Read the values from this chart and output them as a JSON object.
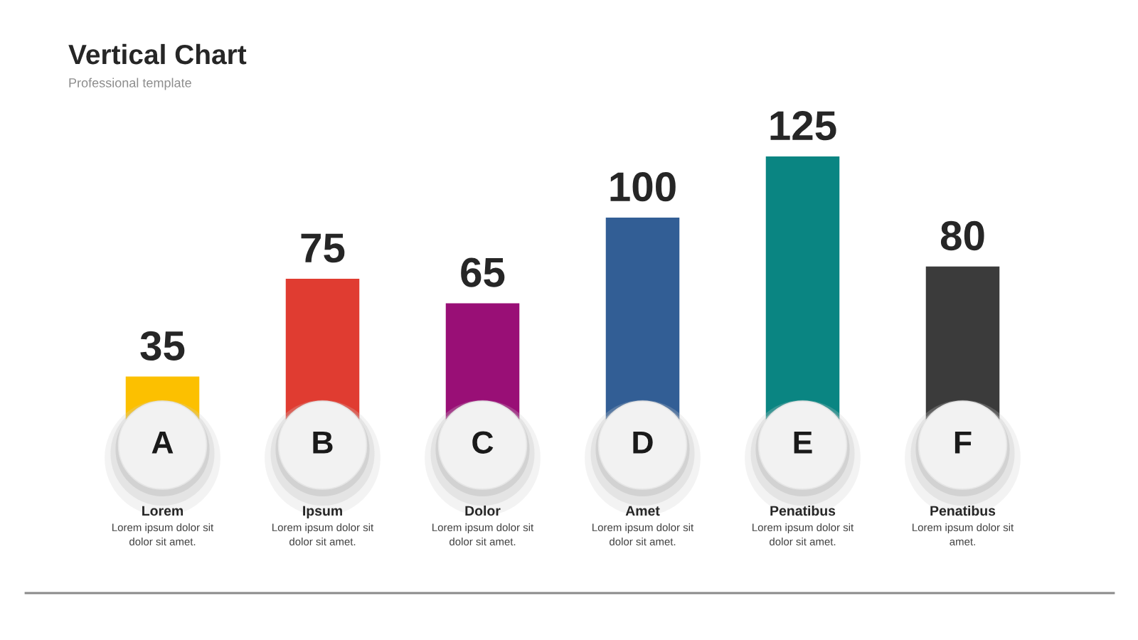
{
  "chart_data": {
    "type": "bar",
    "title": "Vertical Chart",
    "subtitle": "Professional template",
    "categories": [
      "A",
      "B",
      "C",
      "D",
      "E",
      "F"
    ],
    "values": [
      35,
      75,
      65,
      100,
      125,
      80
    ],
    "colors": [
      "#fcc000",
      "#e03c31",
      "#990f76",
      "#325e95",
      "#0a8582",
      "#3b3b3b"
    ],
    "data_labels": true,
    "annotations": [
      "Lorem\nLorem ipsum dolor sit\ndolor sit amet.",
      "Ipsum\nLorem ipsum dolor sit\ndolor sit amet.",
      "Dolor\nLorem ipsum dolor sit\ndolor sit amet.",
      "Amet\nLorem ipsum dolor sit\ndolor sit amet.",
      "Penatibus\nLorem ipsum dolor sit\ndolor sit amet.",
      "Penatibus\nLorem ipsum dolor sit\namet."
    ]
  }
}
